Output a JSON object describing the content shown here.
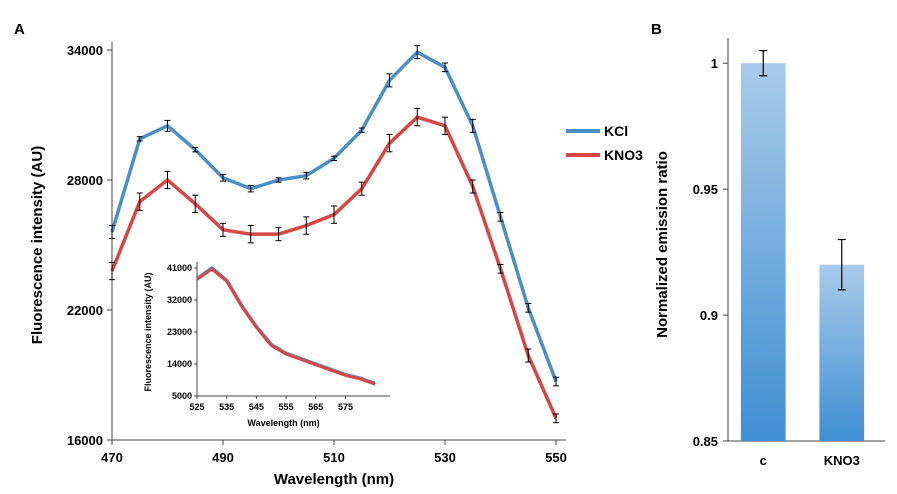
{
  "chart_data": [
    {
      "panel": "A",
      "type": "line",
      "xlabel": "Wavelength (nm)",
      "ylabel": "Fluorescence intensity (AU)",
      "xlim": [
        470,
        550
      ],
      "ylim": [
        16000,
        34000
      ],
      "xticks": [
        "470",
        "490",
        "510",
        "530",
        "550"
      ],
      "yticks": [
        "16000",
        "22000",
        "28000",
        "34000"
      ],
      "legend_position": "right",
      "x": [
        470,
        475,
        480,
        485,
        490,
        495,
        500,
        505,
        510,
        515,
        520,
        525,
        530,
        535,
        540,
        545,
        550
      ],
      "series": [
        {
          "name": "KCl",
          "color": "#4a8ec9",
          "values": [
            25600,
            29900,
            30500,
            29400,
            28100,
            27600,
            28000,
            28200,
            29000,
            30300,
            32600,
            33900,
            33200,
            30500,
            26300,
            22100,
            18700
          ],
          "errors": [
            300,
            100,
            250,
            100,
            150,
            150,
            100,
            150,
            100,
            100,
            300,
            300,
            200,
            300,
            200,
            200,
            200
          ]
        },
        {
          "name": "KNO3",
          "color": "#d94545",
          "values": [
            23800,
            27000,
            28000,
            26900,
            25700,
            25500,
            25500,
            25900,
            26400,
            27600,
            29700,
            30900,
            30500,
            27700,
            23900,
            19900,
            17000
          ],
          "errors": [
            400,
            400,
            400,
            400,
            300,
            400,
            300,
            400,
            400,
            300,
            400,
            400,
            400,
            300,
            200,
            300,
            200
          ]
        }
      ]
    },
    {
      "panel": "A-inset",
      "type": "line",
      "xlabel": "Wavelength (nm)",
      "ylabel": "Fluorescence intensity (AU)",
      "xlim": [
        525,
        590
      ],
      "ylim": [
        5000,
        41000
      ],
      "xticks": [
        "525",
        "535",
        "545",
        "555",
        "565",
        "575"
      ],
      "yticks": [
        "5000",
        "14000",
        "23000",
        "32000",
        "41000"
      ],
      "x": [
        525,
        530,
        535,
        540,
        545,
        550,
        555,
        560,
        565,
        570,
        575,
        580,
        585
      ],
      "series": [
        {
          "color": "#4a8ec9",
          "values": [
            38000,
            41000,
            37500,
            30500,
            24500,
            19500,
            17000,
            15500,
            14000,
            12500,
            11000,
            10000,
            8500
          ]
        },
        {
          "color": "#d94545",
          "values": [
            37800,
            40700,
            37300,
            30300,
            24300,
            19200,
            16800,
            15300,
            13800,
            12300,
            10800,
            9800,
            8300
          ]
        }
      ]
    },
    {
      "panel": "B",
      "type": "bar",
      "ylabel": "Normalized emission ratio",
      "categories": [
        "c",
        "KNO3"
      ],
      "values": [
        1.0,
        0.92
      ],
      "errors": [
        0.005,
        0.01
      ],
      "ylim": [
        0.85,
        1.01
      ],
      "yticks": [
        "0.85",
        "0.9",
        "0.95",
        "1"
      ],
      "bar_color": "#7fb2e0"
    }
  ]
}
